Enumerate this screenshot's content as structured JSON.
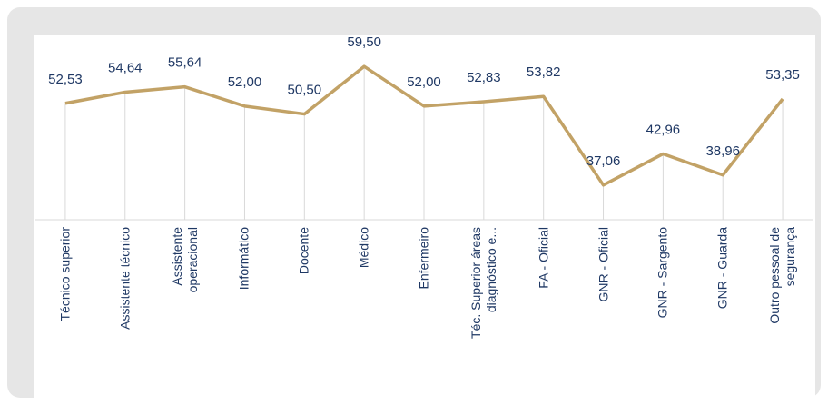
{
  "chart_data": {
    "type": "line",
    "categories": [
      "Técnico superior",
      "Assistente técnico",
      "Assistente\noperacional",
      "Informático",
      "Docente",
      "Médico",
      "Enfermeiro",
      "Téc. Superior áreas\ndiagnóstico e...",
      "FA - Oficial",
      "GNR - Oficial",
      "GNR - Sargento",
      "GNR - Guarda",
      "Outro pessoal de\nsegurança"
    ],
    "series": [
      {
        "color": "#c2a266",
        "values": [
          52.53,
          54.64,
          55.64,
          52.0,
          50.5,
          59.5,
          52.0,
          52.83,
          53.82,
          37.06,
          42.96,
          38.96,
          53.35
        ],
        "value_labels": [
          "52,53",
          "54,64",
          "55,64",
          "52,00",
          "50,50",
          "59,50",
          "52,00",
          "52,83",
          "53,82",
          "37,06",
          "42,96",
          "38,96",
          "53,35"
        ]
      }
    ],
    "ylim": [
      30.5,
      65.2
    ]
  }
}
